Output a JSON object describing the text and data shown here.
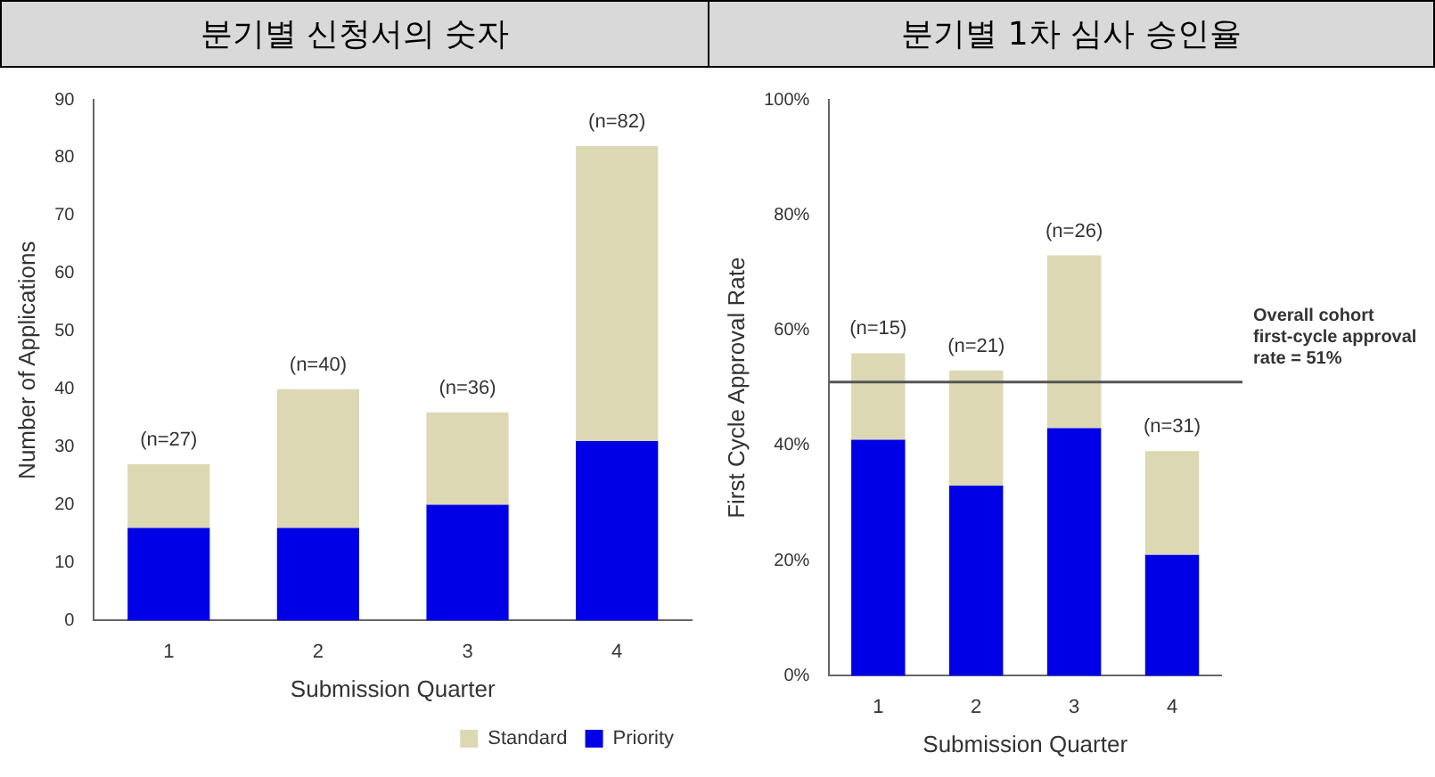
{
  "chart_data": [
    {
      "type": "bar",
      "title": "분기별 신청서의 숫자",
      "xlabel": "Submission Quarter",
      "ylabel": "Number of Applications",
      "categories": [
        "1",
        "2",
        "3",
        "4"
      ],
      "stacked": true,
      "series": [
        {
          "name": "Priority",
          "color": "#0000e6",
          "values": [
            16,
            16,
            20,
            31
          ]
        },
        {
          "name": "Standard",
          "color": "#dcd8b4",
          "values": [
            11,
            24,
            16,
            51
          ]
        }
      ],
      "ylim": [
        0,
        90
      ],
      "yticks": [
        0,
        10,
        20,
        30,
        40,
        50,
        60,
        70,
        80,
        90
      ],
      "grid": false,
      "legend": "bottom right",
      "totals": [
        "(n=27)",
        "(n=40)",
        "(n=36)",
        "(n=82)"
      ]
    },
    {
      "type": "bar",
      "title": "분기별 1차 심사 승인율",
      "xlabel": "Submission Quarter",
      "ylabel": "First Cycle Approval Rate",
      "categories": [
        "1",
        "2",
        "3",
        "4"
      ],
      "stacked": true,
      "series": [
        {
          "color": "#0000e6",
          "values": [
            41,
            33,
            43,
            21
          ]
        },
        {
          "color": "#dcd8b4",
          "values": [
            15,
            20,
            30,
            18
          ]
        }
      ],
      "ylim": [
        0,
        100
      ],
      "yticks": [
        {
          "value": 0,
          "label": "0%"
        },
        {
          "value": 20,
          "label": "20%"
        },
        {
          "value": 40,
          "label": "40%"
        },
        {
          "value": 60,
          "label": "60%"
        },
        {
          "value": 80,
          "label": "80%"
        },
        {
          "value": 100,
          "label": "100%"
        }
      ],
      "grid": false,
      "legend": false,
      "ref_lines": [
        {
          "axis": "y",
          "value": 51,
          "label": "Overall cohort first-cycle approval rate = 51%",
          "color": "#555555"
        }
      ],
      "annotations": [
        {
          "text": "(n=15)",
          "x": "1",
          "y": 56
        },
        {
          "text": "(n=21)",
          "x": "2",
          "y": 53
        },
        {
          "text": "(n=26)",
          "x": "3",
          "y": 73
        },
        {
          "text": "(n=31)",
          "x": "4",
          "y": 39
        }
      ]
    }
  ]
}
